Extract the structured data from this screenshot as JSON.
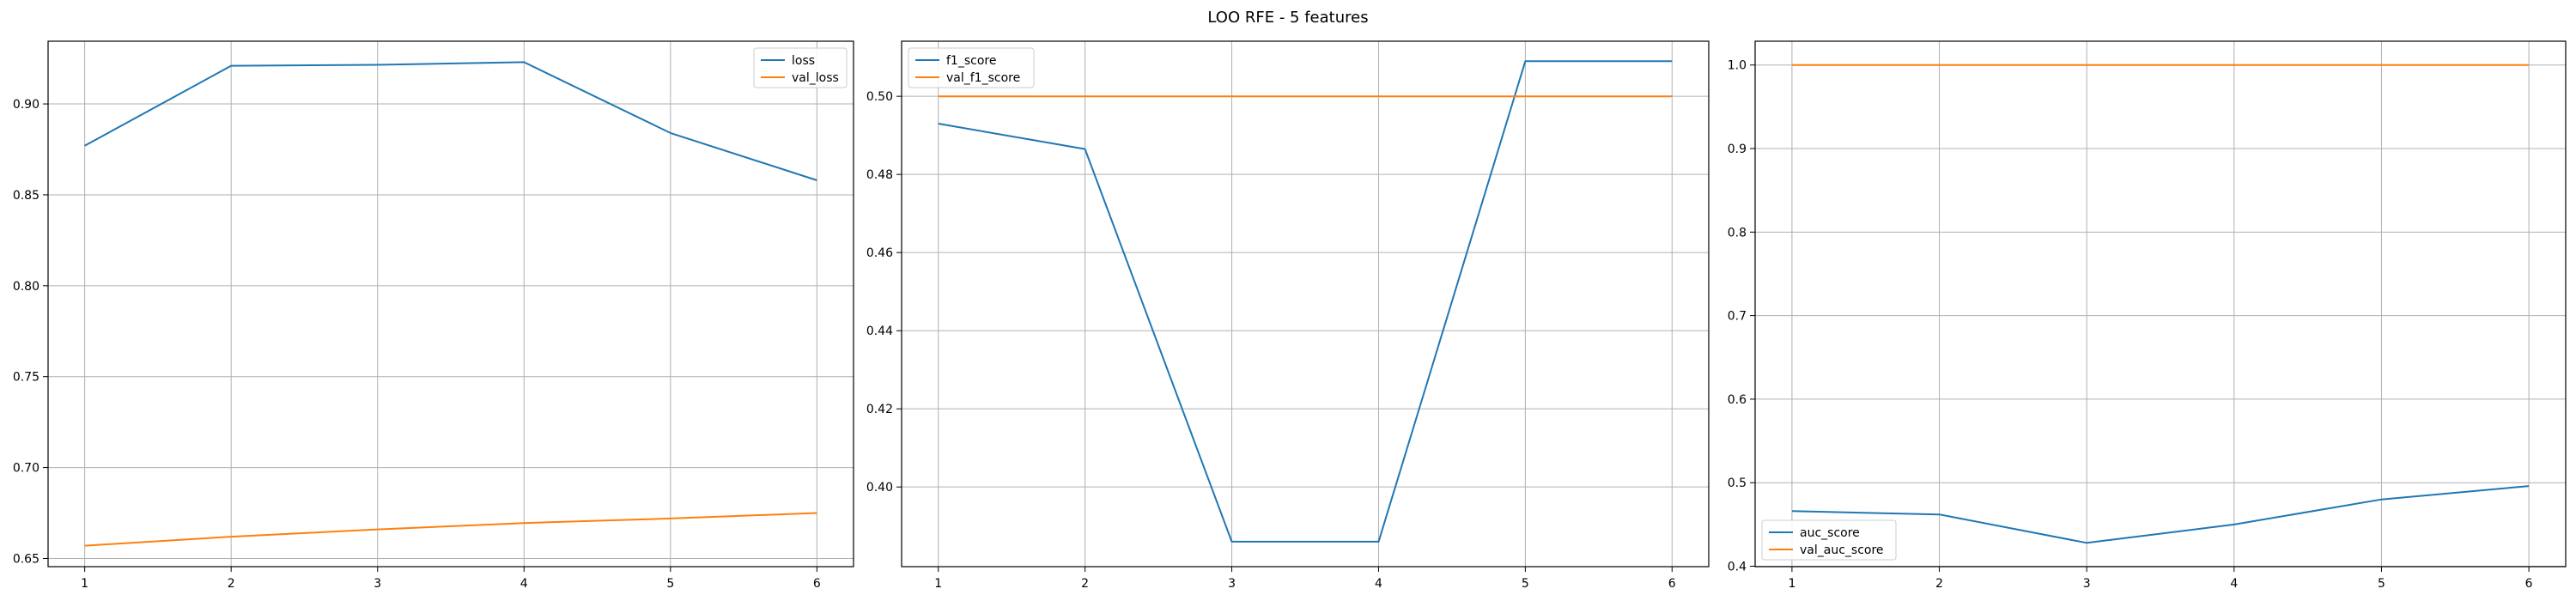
{
  "figure": {
    "title": "LOO RFE - 5 features"
  },
  "colors": {
    "blue": "#1f77b4",
    "orange": "#ff7f0e",
    "grid": "#b0b0b0",
    "axis": "#000000"
  },
  "chart_data": [
    {
      "type": "line",
      "title": "",
      "xlabel": "",
      "ylabel": "",
      "x": [
        1,
        2,
        3,
        4,
        5,
        6
      ],
      "xticks": [
        "1",
        "2",
        "3",
        "4",
        "5",
        "6"
      ],
      "yticks": [
        "0.65",
        "0.70",
        "0.75",
        "0.80",
        "0.85",
        "0.90"
      ],
      "xlim": [
        0.75,
        6.25
      ],
      "ylim": [
        0.6455,
        0.9345
      ],
      "grid": true,
      "legend": "upper right",
      "series": [
        {
          "name": "loss",
          "color": "#1f77b4",
          "values": [
            0.877,
            0.921,
            0.9215,
            0.923,
            0.884,
            0.858
          ]
        },
        {
          "name": "val_loss",
          "color": "#ff7f0e",
          "values": [
            0.657,
            0.662,
            0.666,
            0.6695,
            0.672,
            0.675
          ]
        }
      ]
    },
    {
      "type": "line",
      "title": "",
      "xlabel": "",
      "ylabel": "",
      "x": [
        1,
        2,
        3,
        4,
        5,
        6
      ],
      "xticks": [
        "1",
        "2",
        "3",
        "4",
        "5",
        "6"
      ],
      "yticks": [
        "0.40",
        "0.42",
        "0.44",
        "0.46",
        "0.48",
        "0.50"
      ],
      "xlim": [
        0.75,
        6.25
      ],
      "ylim": [
        0.3796,
        0.5141
      ],
      "grid": true,
      "legend": "upper left",
      "series": [
        {
          "name": "f1_score",
          "color": "#1f77b4",
          "values": [
            0.493,
            0.4865,
            0.386,
            0.386,
            0.509,
            0.509
          ]
        },
        {
          "name": "val_f1_score",
          "color": "#ff7f0e",
          "values": [
            0.5,
            0.5,
            0.5,
            0.5,
            0.5,
            0.5
          ]
        }
      ]
    },
    {
      "type": "line",
      "title": "",
      "xlabel": "",
      "ylabel": "",
      "x": [
        1,
        2,
        3,
        4,
        5,
        6
      ],
      "xticks": [
        "1",
        "2",
        "3",
        "4",
        "5",
        "6"
      ],
      "yticks": [
        "0.4",
        "0.5",
        "0.6",
        "0.7",
        "0.8",
        "0.9",
        "1.0"
      ],
      "xlim": [
        0.75,
        6.25
      ],
      "ylim": [
        0.3995,
        1.0285
      ],
      "grid": true,
      "legend": "lower left",
      "series": [
        {
          "name": "auc_score",
          "color": "#1f77b4",
          "values": [
            0.466,
            0.462,
            0.428,
            0.45,
            0.48,
            0.496
          ]
        },
        {
          "name": "val_auc_score",
          "color": "#ff7f0e",
          "values": [
            1.0,
            1.0,
            1.0,
            1.0,
            1.0,
            1.0
          ]
        }
      ]
    }
  ]
}
